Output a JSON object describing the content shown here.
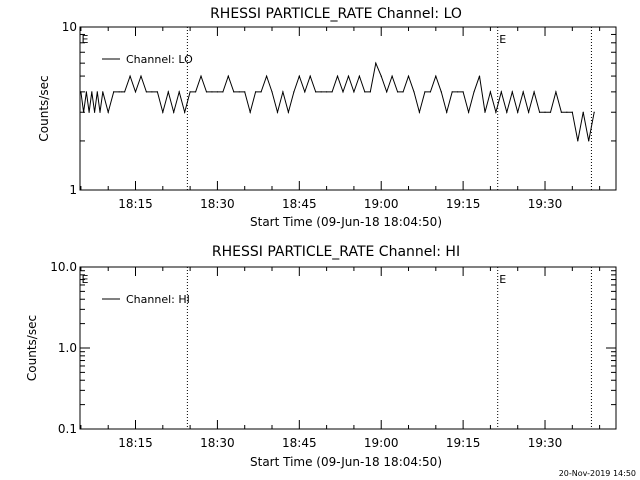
{
  "footer_timestamp": "20-Nov-2019 14:50",
  "chart_data": [
    {
      "type": "line",
      "title": "RHESSI PARTICLE_RATE Channel: LO",
      "xlabel": "Start Time (09-Jun-18 18:04:50)",
      "ylabel": "Counts/sec",
      "y_scale": "log",
      "xlim": [
        "18:04:50",
        "19:43:00"
      ],
      "ylim": [
        1,
        10
      ],
      "x_ticks": [
        "18:15",
        "18:30",
        "18:45",
        "19:00",
        "19:15",
        "19:30"
      ],
      "y_ticks": [
        "1",
        "10"
      ],
      "grid": false,
      "legend": {
        "position": "top-left",
        "entries": [
          "Channel: LO"
        ]
      },
      "vertical_markers": [
        "18:24:30",
        "19:21:20",
        "19:38:30"
      ],
      "marker_labels": [
        "E",
        "E"
      ],
      "series": [
        {
          "name": "Channel: LO",
          "x": [
            "18:05:00",
            "18:05:30",
            "18:06:00",
            "18:06:30",
            "18:07:00",
            "18:07:30",
            "18:08:00",
            "18:08:30",
            "18:09:00",
            "18:10:00",
            "18:11:00",
            "18:12:00",
            "18:12:30",
            "18:13:00",
            "18:14:00",
            "18:15:00",
            "18:16:00",
            "18:17:00",
            "18:18:00",
            "18:19:00",
            "18:20:00",
            "18:21:00",
            "18:22:00",
            "18:23:00",
            "18:24:00",
            "18:25:00",
            "18:26:00",
            "18:27:00",
            "18:28:00",
            "18:29:00",
            "18:30:00",
            "18:31:00",
            "18:32:00",
            "18:33:00",
            "18:34:00",
            "18:35:00",
            "18:36:00",
            "18:37:00",
            "18:38:00",
            "18:39:00",
            "18:40:00",
            "18:41:00",
            "18:42:00",
            "18:43:00",
            "18:44:00",
            "18:45:00",
            "18:46:00",
            "18:47:00",
            "18:48:00",
            "18:49:00",
            "18:50:00",
            "18:51:00",
            "18:52:00",
            "18:53:00",
            "18:54:00",
            "18:55:00",
            "18:56:00",
            "18:57:00",
            "18:58:00",
            "18:59:00",
            "19:00:00",
            "19:01:00",
            "19:02:00",
            "19:03:00",
            "19:04:00",
            "19:05:00",
            "19:06:00",
            "19:07:00",
            "19:08:00",
            "19:09:00",
            "19:10:00",
            "19:11:00",
            "19:12:00",
            "19:13:00",
            "19:14:00",
            "19:15:00",
            "19:16:00",
            "19:17:00",
            "19:18:00",
            "19:19:00",
            "19:20:00",
            "19:21:00",
            "19:22:00",
            "19:23:00",
            "19:24:00",
            "19:25:00",
            "19:26:00",
            "19:27:00",
            "19:28:00",
            "19:29:00",
            "19:30:00",
            "19:31:00",
            "19:32:00",
            "19:33:00",
            "19:34:00",
            "19:35:00",
            "19:36:00",
            "19:37:00",
            "19:38:00",
            "19:39:00"
          ],
          "values": [
            4,
            3,
            4,
            3,
            4,
            3,
            4,
            3,
            4,
            3,
            4,
            4,
            4,
            4,
            5,
            4,
            5,
            4,
            4,
            4,
            3,
            4,
            3,
            4,
            3,
            4,
            4,
            5,
            4,
            4,
            4,
            4,
            5,
            4,
            4,
            4,
            3,
            4,
            4,
            5,
            4,
            3,
            4,
            3,
            4,
            5,
            4,
            5,
            4,
            4,
            4,
            4,
            5,
            4,
            5,
            4,
            5,
            4,
            4,
            6,
            5,
            4,
            5,
            4,
            4,
            5,
            4,
            3,
            4,
            4,
            5,
            4,
            3,
            4,
            4,
            4,
            3,
            4,
            5,
            3,
            4,
            3,
            4,
            3,
            4,
            3,
            4,
            3,
            4,
            3,
            3,
            3,
            4,
            3,
            3,
            3,
            2,
            3,
            2,
            3
          ]
        }
      ]
    },
    {
      "type": "line",
      "title": "RHESSI PARTICLE_RATE Channel: HI",
      "xlabel": "Start Time (09-Jun-18 18:04:50)",
      "ylabel": "Counts/sec",
      "y_scale": "log",
      "xlim": [
        "18:04:50",
        "19:43:00"
      ],
      "ylim": [
        0.1,
        10
      ],
      "x_ticks": [
        "18:15",
        "18:30",
        "18:45",
        "19:00",
        "19:15",
        "19:30"
      ],
      "y_ticks": [
        "0.1",
        "1.0",
        "10.0"
      ],
      "grid": false,
      "legend": {
        "position": "top-left",
        "entries": [
          "Channel: HI"
        ]
      },
      "vertical_markers": [
        "18:24:30",
        "19:21:20",
        "19:38:30"
      ],
      "marker_labels": [
        "E",
        "E"
      ],
      "series": [
        {
          "name": "Channel: HI",
          "x": [],
          "values": []
        }
      ]
    }
  ]
}
